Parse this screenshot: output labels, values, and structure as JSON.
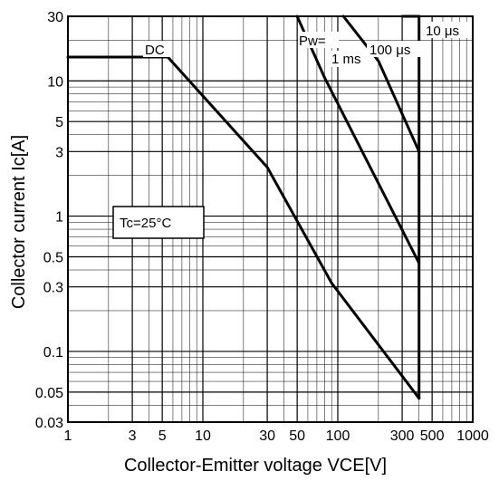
{
  "chart_data": {
    "type": "line",
    "xlabel": "Collector-Emitter voltage VCE[V]",
    "ylabel": "Collector current   Ic[A]",
    "x_scale": "log",
    "y_scale": "log",
    "xlim": [
      1,
      1000
    ],
    "ylim": [
      0.03,
      30
    ],
    "grid": true,
    "x_ticks": [
      {
        "value": 1,
        "label": "1"
      },
      {
        "value": 3,
        "label": "3"
      },
      {
        "value": 5,
        "label": "5"
      },
      {
        "value": 10,
        "label": "10"
      },
      {
        "value": 30,
        "label": "30"
      },
      {
        "value": 50,
        "label": "50"
      },
      {
        "value": 100,
        "label": "100"
      },
      {
        "value": 300,
        "label": "300"
      },
      {
        "value": 500,
        "label": "500"
      },
      {
        "value": 1000,
        "label": "1000"
      }
    ],
    "y_ticks": [
      {
        "value": 30,
        "label": "30"
      },
      {
        "value": 10,
        "label": "10"
      },
      {
        "value": 5,
        "label": "5"
      },
      {
        "value": 3,
        "label": "3"
      },
      {
        "value": 1,
        "label": "1"
      },
      {
        "value": 0.5,
        "label": "0.5"
      },
      {
        "value": 0.3,
        "label": "0.3"
      },
      {
        "value": 0.1,
        "label": "0.1"
      },
      {
        "value": 0.05,
        "label": "0.05"
      },
      {
        "value": 0.03,
        "label": "0.03"
      }
    ],
    "series": [
      {
        "name": "DC",
        "points": [
          [
            1,
            15
          ],
          [
            5.5,
            15
          ],
          [
            30,
            2.3
          ],
          [
            90,
            0.32
          ],
          [
            400,
            0.045
          ]
        ]
      },
      {
        "name": "1 ms",
        "points": [
          [
            50,
            30
          ],
          [
            80,
            10.5
          ],
          [
            400,
            0.45
          ]
        ]
      },
      {
        "name": "100 μs",
        "points": [
          [
            110,
            30
          ],
          [
            200,
            14
          ],
          [
            400,
            3
          ]
        ]
      },
      {
        "name": "10 μs",
        "points": [
          [
            300,
            30
          ],
          [
            400,
            30
          ]
        ]
      }
    ],
    "annotations": {
      "dc": "DC",
      "pw": "Pw=",
      "ms1": "1 ms",
      "us100": "100 μs",
      "us10": "10 μs",
      "tc": "Tc=25°C"
    }
  }
}
